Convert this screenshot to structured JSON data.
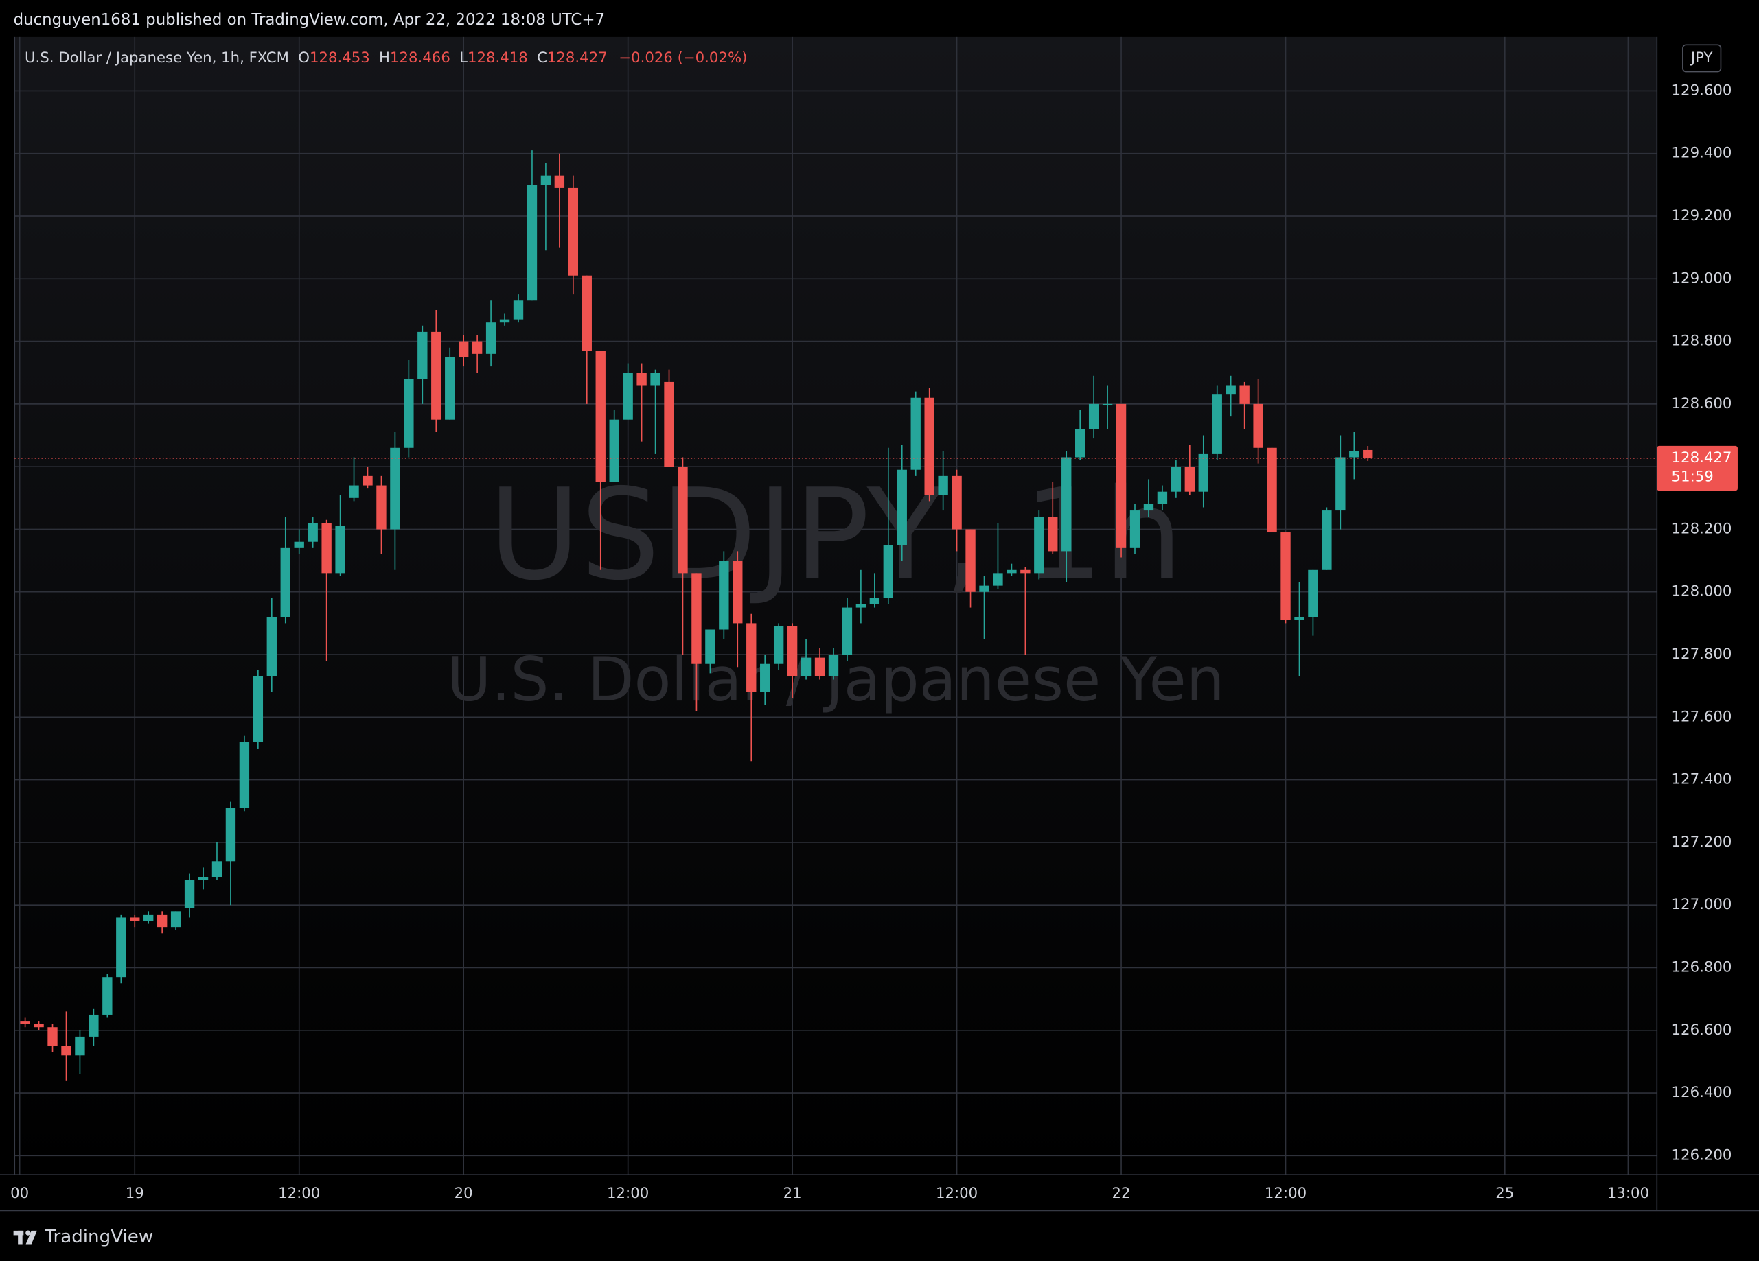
{
  "header": {
    "published": "ducnguyen1681 published on TradingView.com, Apr 22, 2022 18:08 UTC+7"
  },
  "footer": {
    "brand": "TradingView"
  },
  "chart_data": {
    "type": "candlestick",
    "legend": {
      "symbol": "U.S. Dollar / Japanese Yen, 1h, FXCM",
      "items": [
        {
          "key": "O",
          "value": 128.453
        },
        {
          "key": "H",
          "value": 128.466
        },
        {
          "key": "L",
          "value": 128.418
        },
        {
          "key": "C",
          "value": 128.427
        }
      ],
      "change": "−0.026 (−0.02%)"
    },
    "watermark": "USDJPY, 1h",
    "watermark_subtitle": "U.S. Dollar / Japanese Yen",
    "currency": "JPY",
    "last_price": 128.427,
    "countdown": "51:59",
    "up_color": "#26a69a",
    "down_color": "#ef5350",
    "grid": true,
    "x": [
      -8,
      -7,
      -6,
      -5,
      -4,
      -3,
      -2,
      -1,
      0,
      1,
      2,
      3,
      4,
      5,
      6,
      7,
      8,
      9,
      10,
      11,
      12,
      13,
      14,
      15,
      16,
      17,
      18,
      19,
      20,
      21,
      22,
      23,
      24,
      25,
      26,
      27,
      28,
      29,
      30,
      31,
      32,
      33,
      34,
      35,
      36,
      37,
      38,
      39,
      40,
      41,
      42,
      43,
      44,
      45,
      46,
      47,
      48,
      49,
      50,
      51,
      52,
      53,
      54,
      55,
      56,
      57,
      58,
      59,
      60,
      61,
      62,
      63,
      64,
      65,
      66,
      67,
      68,
      69,
      70,
      71,
      72,
      73,
      74,
      75,
      76,
      77,
      78,
      79,
      80,
      81,
      82,
      83,
      84,
      85,
      86,
      87,
      88,
      89,
      90
    ],
    "open": [
      126.63,
      126.62,
      126.61,
      126.55,
      126.52,
      126.58,
      126.65,
      126.77,
      126.96,
      126.95,
      126.97,
      126.93,
      126.99,
      127.08,
      127.09,
      127.14,
      127.31,
      127.52,
      127.73,
      127.92,
      128.14,
      128.16,
      128.22,
      128.06,
      128.3,
      128.37,
      128.34,
      128.2,
      128.46,
      128.68,
      128.83,
      128.55,
      128.8,
      128.8,
      128.76,
      128.86,
      128.87,
      128.93,
      129.3,
      129.33,
      129.29,
      129.01,
      128.77,
      128.35,
      128.55,
      128.7,
      128.66,
      128.67,
      128.4,
      128.06,
      127.77,
      127.88,
      128.1,
      127.9,
      127.68,
      127.77,
      127.89,
      127.73,
      127.79,
      127.73,
      127.8,
      127.95,
      127.96,
      127.98,
      128.15,
      128.39,
      128.62,
      128.31,
      128.37,
      128.2,
      128.0,
      128.02,
      128.06,
      128.07,
      128.06,
      128.24,
      128.13,
      128.43,
      128.52,
      128.6,
      128.6,
      128.14,
      128.26,
      128.28,
      128.32,
      128.4,
      128.32,
      128.44,
      128.63,
      128.66,
      128.6,
      128.46,
      128.19,
      127.91,
      127.92,
      128.07,
      128.26,
      128.43,
      128.453
    ],
    "high": [
      126.64,
      126.63,
      126.62,
      126.66,
      126.6,
      126.67,
      126.78,
      126.97,
      126.97,
      126.98,
      126.98,
      126.98,
      127.1,
      127.12,
      127.2,
      127.33,
      127.54,
      127.75,
      127.98,
      128.24,
      128.2,
      128.24,
      128.23,
      128.31,
      128.43,
      128.4,
      128.37,
      128.51,
      128.74,
      128.85,
      128.9,
      128.78,
      128.82,
      128.82,
      128.93,
      128.89,
      128.95,
      129.41,
      129.37,
      129.4,
      129.33,
      129.01,
      128.77,
      128.58,
      128.73,
      128.73,
      128.71,
      128.71,
      128.43,
      128.06,
      127.88,
      128.13,
      128.13,
      127.93,
      127.8,
      127.9,
      127.9,
      127.85,
      127.82,
      127.82,
      127.98,
      128.07,
      128.06,
      128.46,
      128.47,
      128.64,
      128.65,
      128.45,
      128.39,
      128.2,
      128.05,
      128.22,
      128.09,
      128.08,
      128.26,
      128.35,
      128.45,
      128.58,
      128.69,
      128.66,
      128.6,
      128.28,
      128.36,
      128.34,
      128.42,
      128.47,
      128.5,
      128.66,
      128.69,
      128.67,
      128.68,
      128.46,
      128.19,
      128.03,
      128.07,
      128.27,
      128.5,
      128.51,
      128.466
    ],
    "low": [
      126.61,
      126.6,
      126.53,
      126.44,
      126.46,
      126.55,
      126.64,
      126.75,
      126.93,
      126.94,
      126.91,
      126.92,
      126.96,
      127.05,
      127.08,
      127.0,
      127.3,
      127.5,
      127.68,
      127.9,
      128.12,
      128.14,
      127.78,
      128.05,
      128.29,
      128.33,
      128.12,
      128.07,
      128.43,
      128.6,
      128.51,
      128.55,
      128.72,
      128.7,
      128.72,
      128.85,
      128.86,
      128.93,
      129.09,
      129.1,
      128.95,
      128.6,
      128.07,
      128.35,
      128.55,
      128.48,
      128.44,
      128.4,
      127.8,
      127.62,
      127.74,
      127.85,
      127.76,
      127.46,
      127.64,
      127.75,
      127.66,
      127.72,
      127.72,
      127.72,
      127.78,
      127.9,
      127.95,
      127.96,
      128.1,
      128.37,
      128.29,
      128.26,
      128.13,
      127.95,
      127.85,
      128.01,
      128.05,
      127.8,
      128.04,
      128.12,
      128.03,
      128.42,
      128.49,
      128.52,
      128.11,
      128.12,
      128.24,
      128.26,
      128.3,
      128.31,
      128.27,
      128.42,
      128.56,
      128.52,
      128.41,
      128.19,
      127.9,
      127.73,
      127.86,
      128.07,
      128.2,
      128.36,
      128.418
    ],
    "close": [
      126.62,
      126.61,
      126.55,
      126.52,
      126.58,
      126.65,
      126.77,
      126.96,
      126.95,
      126.97,
      126.93,
      126.98,
      127.08,
      127.09,
      127.14,
      127.31,
      127.52,
      127.73,
      127.92,
      128.14,
      128.16,
      128.22,
      128.06,
      128.21,
      128.34,
      128.34,
      128.2,
      128.46,
      128.68,
      128.83,
      128.55,
      128.75,
      128.75,
      128.76,
      128.86,
      128.87,
      128.93,
      129.3,
      129.33,
      129.29,
      129.01,
      128.77,
      128.35,
      128.55,
      128.7,
      128.66,
      128.7,
      128.4,
      128.06,
      127.77,
      127.88,
      128.1,
      127.9,
      127.68,
      127.77,
      127.89,
      127.73,
      127.79,
      127.73,
      127.8,
      127.95,
      127.96,
      127.98,
      128.15,
      128.39,
      128.62,
      128.31,
      128.37,
      128.2,
      128.0,
      128.02,
      128.06,
      128.07,
      128.06,
      128.24,
      128.13,
      128.43,
      128.52,
      128.6,
      128.6,
      128.14,
      128.26,
      128.28,
      128.32,
      128.4,
      128.32,
      128.44,
      128.63,
      128.66,
      128.6,
      128.46,
      128.19,
      127.91,
      127.92,
      128.07,
      128.26,
      128.43,
      128.45,
      128.427
    ],
    "xlim": [
      -8.77,
      111.1
    ],
    "xticks": [
      {
        "value": -8.4,
        "label": "00"
      },
      {
        "value": 0,
        "label": "19"
      },
      {
        "value": 12,
        "label": "12:00"
      },
      {
        "value": 24,
        "label": "20"
      },
      {
        "value": 36,
        "label": "12:00"
      },
      {
        "value": 48,
        "label": "21"
      },
      {
        "value": 60,
        "label": "12:00"
      },
      {
        "value": 72,
        "label": "22"
      },
      {
        "value": 84,
        "label": "12:00"
      },
      {
        "value": 100,
        "label": "25"
      },
      {
        "value": 109,
        "label": "13:00"
      }
    ],
    "ylim": [
      126.139,
      129.772
    ],
    "yticks": [
      {
        "value": 126.2,
        "label": "126.200"
      },
      {
        "value": 126.4,
        "label": "126.400"
      },
      {
        "value": 126.6,
        "label": "126.600"
      },
      {
        "value": 126.8,
        "label": "126.800"
      },
      {
        "value": 127,
        "label": "127.000"
      },
      {
        "value": 127.2,
        "label": "127.200"
      },
      {
        "value": 127.4,
        "label": "127.400"
      },
      {
        "value": 127.6,
        "label": "127.600"
      },
      {
        "value": 127.8,
        "label": "127.800"
      },
      {
        "value": 128,
        "label": "128.000"
      },
      {
        "value": 128.2,
        "label": "128.200"
      },
      {
        "value": 128.4,
        "label": "128.400"
      },
      {
        "value": 128.6,
        "label": "128.600"
      },
      {
        "value": 128.8,
        "label": "128.800"
      },
      {
        "value": 129,
        "label": "129.000"
      },
      {
        "value": 129.2,
        "label": "129.200"
      },
      {
        "value": 129.4,
        "label": "129.400"
      },
      {
        "value": 129.6,
        "label": "129.600"
      }
    ]
  }
}
